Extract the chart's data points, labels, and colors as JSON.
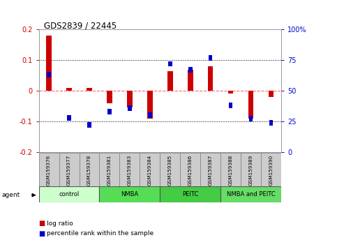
{
  "title": "GDS2839 / 22445",
  "samples": [
    "GSM159376",
    "GSM159377",
    "GSM159378",
    "GSM159381",
    "GSM159383",
    "GSM159384",
    "GSM159385",
    "GSM159386",
    "GSM159387",
    "GSM159388",
    "GSM159389",
    "GSM159390"
  ],
  "log_ratio": [
    0.18,
    0.01,
    0.01,
    -0.04,
    -0.055,
    -0.09,
    0.065,
    0.068,
    0.08,
    -0.01,
    -0.09,
    -0.02
  ],
  "percentile_rank": [
    63,
    28,
    22,
    33,
    36,
    30,
    72,
    67,
    77,
    38,
    27,
    24
  ],
  "groups": [
    {
      "label": "control",
      "start": 0,
      "end": 3,
      "color": "#ccffcc"
    },
    {
      "label": "NMBA",
      "start": 3,
      "end": 6,
      "color": "#55dd55"
    },
    {
      "label": "PEITC",
      "start": 6,
      "end": 9,
      "color": "#44cc44"
    },
    {
      "label": "NMBA and PEITC",
      "start": 9,
      "end": 12,
      "color": "#66dd66"
    }
  ],
  "ylim_left": [
    -0.2,
    0.2
  ],
  "ylim_right": [
    0,
    100
  ],
  "yticks_left": [
    -0.2,
    -0.1,
    0.0,
    0.1,
    0.2
  ],
  "yticks_right": [
    0,
    25,
    50,
    75,
    100
  ],
  "red_color": "#cc0000",
  "blue_color": "#0000cc",
  "bg_color": "#ffffff",
  "plot_bg_color": "#ffffff",
  "zero_line_color": "#ff6666",
  "sample_bg_color": "#cccccc",
  "legend_red": "log ratio",
  "legend_blue": "percentile rank within the sample"
}
